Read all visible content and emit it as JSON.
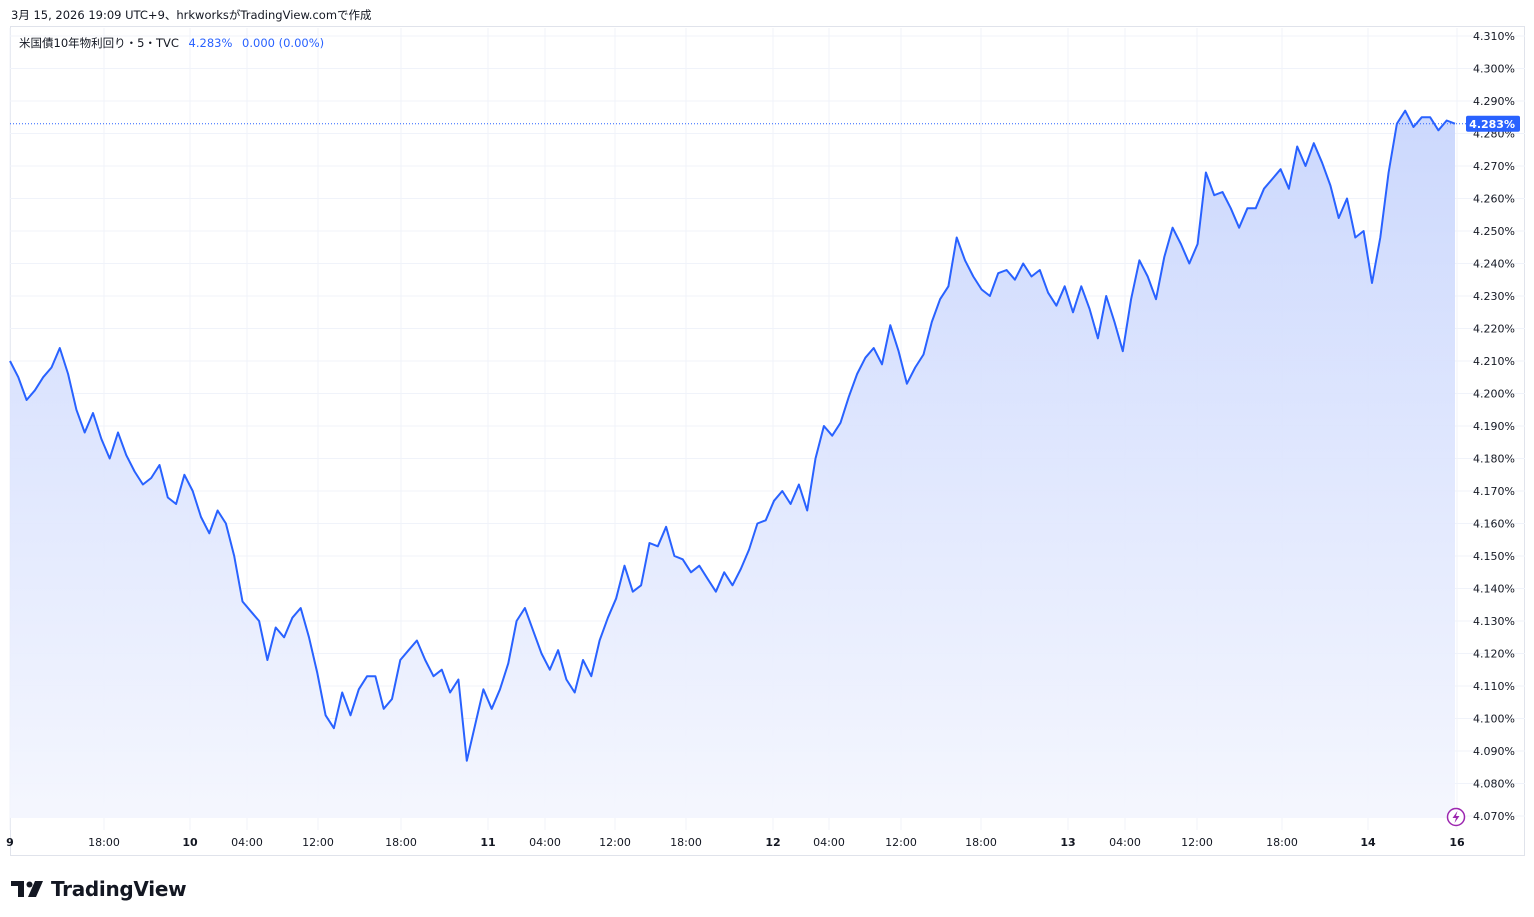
{
  "header": {
    "caption": "3月 15, 2026 19:09 UTC+9、hrkworksがTradingView.comで作成"
  },
  "legend": {
    "symbol": "米国債10年物利回り・5・TVC",
    "last": "4.283%",
    "change": "0.000 (0.00%)"
  },
  "brand": {
    "name": "TradingView",
    "logo_icon": "tradingview-logo-icon"
  },
  "colors": {
    "line": "#2962ff",
    "fill_top": "#c9d6fd",
    "fill_bottom": "#f4f6fe",
    "grid": "#f0f3fa",
    "price_tag": "#2962ff",
    "bolt": "#9c27b0"
  },
  "chart_data": {
    "type": "area",
    "title": "米国債10年物利回り・5・TVC",
    "xlabel": "",
    "ylabel": "",
    "ylim": [
      4.065,
      4.312
    ],
    "yticks": [
      "4.310%",
      "4.300%",
      "4.290%",
      "4.280%",
      "4.270%",
      "4.260%",
      "4.250%",
      "4.240%",
      "4.230%",
      "4.220%",
      "4.210%",
      "4.200%",
      "4.190%",
      "4.180%",
      "4.170%",
      "4.160%",
      "4.150%",
      "4.140%",
      "4.130%",
      "4.120%",
      "4.110%",
      "4.100%",
      "4.090%",
      "4.080%",
      "4.070%"
    ],
    "xticks": [
      "9",
      "18:00",
      "10",
      "04:00",
      "12:00",
      "18:00",
      "11",
      "04:00",
      "12:00",
      "18:00",
      "12",
      "04:00",
      "12:00",
      "18:00",
      "13",
      "04:00",
      "12:00",
      "18:00",
      "14",
      "16"
    ],
    "x_start": "Mar 9 ~09:00 UTC+9",
    "x_end": "Mar 16 ~06:00 UTC+9",
    "current_value_label": "4.283%",
    "current_value": 4.283,
    "series": [
      {
        "values": [
          4.21,
          4.205,
          4.198,
          4.201,
          4.205,
          4.208,
          4.214,
          4.206,
          4.195,
          4.188,
          4.194,
          4.186,
          4.18,
          4.188,
          4.181,
          4.176,
          4.172,
          4.174,
          4.178,
          4.168,
          4.166,
          4.175,
          4.17,
          4.162,
          4.157,
          4.164,
          4.16,
          4.15,
          4.136,
          4.133,
          4.13,
          4.118,
          4.128,
          4.125,
          4.131,
          4.134,
          4.125,
          4.114,
          4.101,
          4.097,
          4.108,
          4.101,
          4.109,
          4.113,
          4.113,
          4.103,
          4.106,
          4.118,
          4.121,
          4.124,
          4.118,
          4.113,
          4.115,
          4.108,
          4.112,
          4.087,
          4.098,
          4.109,
          4.103,
          4.109,
          4.117,
          4.13,
          4.134,
          4.127,
          4.12,
          4.115,
          4.121,
          4.112,
          4.108,
          4.118,
          4.113,
          4.124,
          4.131,
          4.137,
          4.147,
          4.139,
          4.141,
          4.154,
          4.153,
          4.159,
          4.15,
          4.149,
          4.145,
          4.147,
          4.143,
          4.139,
          4.145,
          4.141,
          4.146,
          4.152,
          4.16,
          4.161,
          4.167,
          4.17,
          4.166,
          4.172,
          4.164,
          4.18,
          4.19,
          4.187,
          4.191,
          4.199,
          4.206,
          4.211,
          4.214,
          4.209,
          4.221,
          4.213,
          4.203,
          4.208,
          4.212,
          4.222,
          4.229,
          4.233,
          4.248,
          4.241,
          4.236,
          4.232,
          4.23,
          4.237,
          4.238,
          4.235,
          4.24,
          4.236,
          4.238,
          4.231,
          4.227,
          4.233,
          4.225,
          4.233,
          4.226,
          4.217,
          4.23,
          4.222,
          4.213,
          4.229,
          4.241,
          4.236,
          4.229,
          4.242,
          4.251,
          4.246,
          4.24,
          4.246,
          4.268,
          4.261,
          4.262,
          4.257,
          4.251,
          4.257,
          4.257,
          4.263,
          4.266,
          4.269,
          4.263,
          4.276,
          4.27,
          4.277,
          4.271,
          4.264,
          4.254,
          4.26,
          4.248,
          4.25,
          4.234,
          4.248,
          4.268,
          4.283,
          4.287,
          4.282,
          4.285,
          4.285,
          4.281,
          4.284,
          4.283
        ]
      }
    ]
  }
}
